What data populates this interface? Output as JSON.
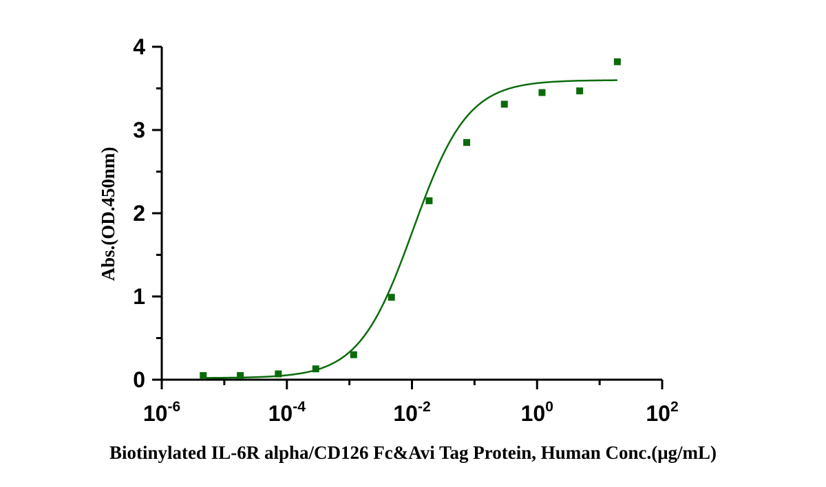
{
  "chart_data": {
    "type": "scatter",
    "xlabel": "Biotinylated IL-6R alpha/CD126 Fc&Avi Tag Protein, Human Conc.(μg/mL)",
    "ylabel": "Abs.(OD.450nm)",
    "x_scale": "log10",
    "xlim": [
      1e-06,
      100
    ],
    "ylim": [
      0,
      4
    ],
    "x_ticks": [
      {
        "base": "10",
        "exp": "-6",
        "value": 1e-06
      },
      {
        "base": "10",
        "exp": "-4",
        "value": 0.0001
      },
      {
        "base": "10",
        "exp": "-2",
        "value": 0.01
      },
      {
        "base": "10",
        "exp": "0",
        "value": 1
      },
      {
        "base": "10",
        "exp": "2",
        "value": 100
      }
    ],
    "y_ticks": [
      "0",
      "1",
      "2",
      "3",
      "4"
    ],
    "grid": false,
    "color": "#0b6b0b",
    "series": [
      {
        "marker": "square",
        "points": [
          {
            "x": 4.6e-06,
            "y": 0.05
          },
          {
            "x": 1.8e-05,
            "y": 0.05
          },
          {
            "x": 7.3e-05,
            "y": 0.07
          },
          {
            "x": 0.00029,
            "y": 0.13
          },
          {
            "x": 0.00117,
            "y": 0.3
          },
          {
            "x": 0.0047,
            "y": 0.99
          },
          {
            "x": 0.0188,
            "y": 2.15
          },
          {
            "x": 0.075,
            "y": 2.85
          },
          {
            "x": 0.3,
            "y": 3.31
          },
          {
            "x": 1.2,
            "y": 3.45
          },
          {
            "x": 4.8,
            "y": 3.47
          },
          {
            "x": 19.2,
            "y": 3.82
          }
        ],
        "fit": {
          "model": "four-parameter logistic",
          "bottom": 0.02,
          "top": 3.6,
          "ec50": 0.0105,
          "hill": 1.0,
          "x_range": [
            4.6e-06,
            19.2
          ]
        }
      }
    ]
  }
}
